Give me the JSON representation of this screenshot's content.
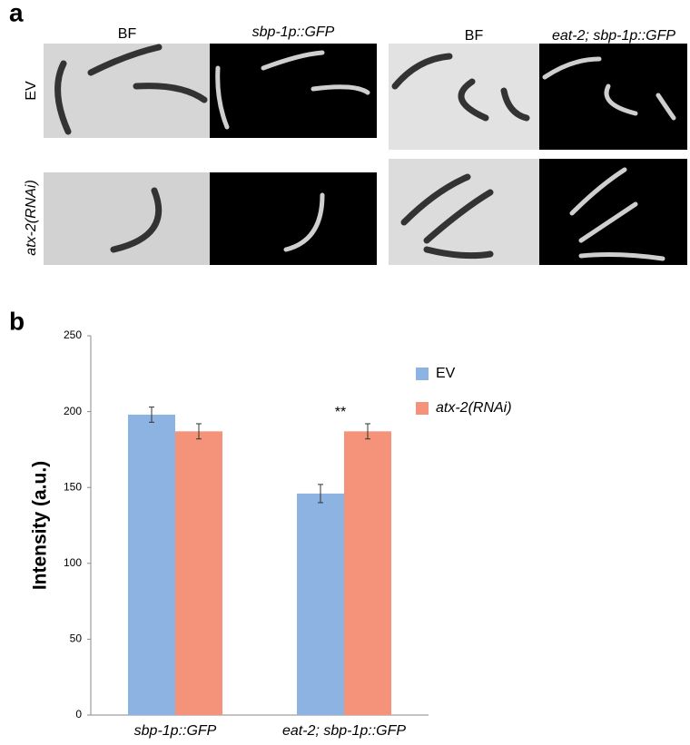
{
  "panel_a": {
    "label": "a",
    "columns": [
      "BF",
      "sbp-1p::GFP",
      "BF",
      "eat-2; sbp-1p::GFP"
    ],
    "rows": [
      "EV",
      "atx-2(RNAi)"
    ]
  },
  "chart_data": {
    "type": "bar",
    "panel_label": "b",
    "y_label": "Intensity (a.u.)",
    "categories": [
      "sbp-1p::GFP",
      "eat-2; sbp-1p::GFP"
    ],
    "series": [
      {
        "name": "EV",
        "color": "#8db3e2",
        "values": [
          198,
          146
        ],
        "errors": [
          5,
          6
        ]
      },
      {
        "name": "atx-2(RNAi)",
        "color": "#f4937a",
        "values": [
          187,
          187
        ],
        "errors": [
          5,
          5
        ]
      }
    ],
    "annotations": [
      {
        "text": "**",
        "category": 1
      }
    ],
    "ylim": [
      0,
      250
    ],
    "yticks": [
      0,
      50,
      100,
      150,
      200,
      250
    ],
    "grid": false
  }
}
